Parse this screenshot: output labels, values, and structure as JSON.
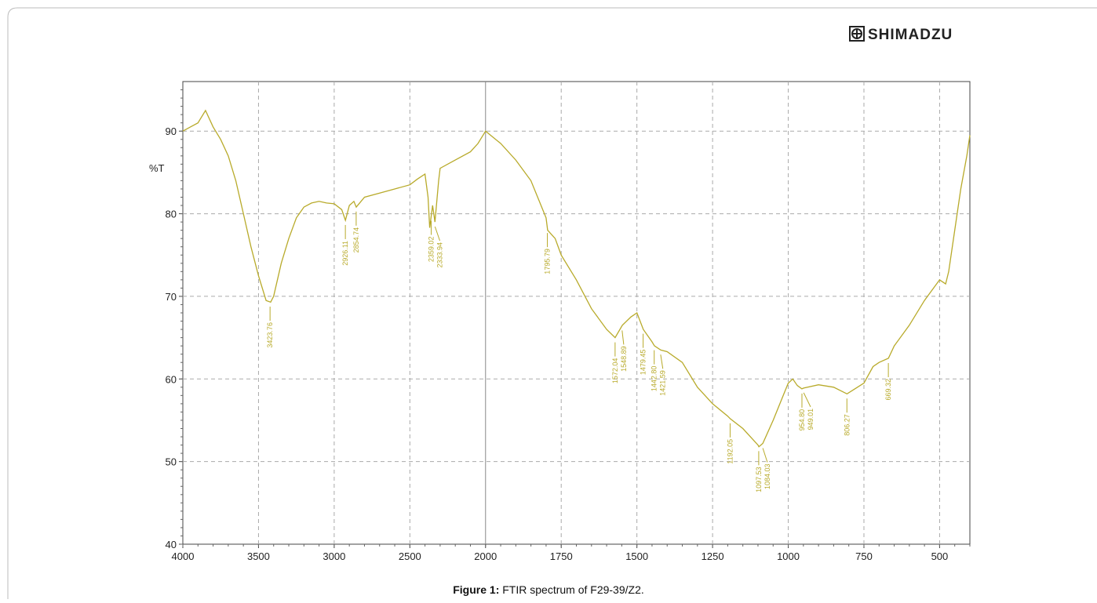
{
  "logo": "SHIMADZU",
  "caption": {
    "bold": "Figure 1:",
    "text": "FTIR spectrum of F29-39/Z2."
  },
  "chart_data": {
    "type": "line",
    "ylabel": "%T",
    "xlim": [
      4000,
      400
    ],
    "x_break": 2000,
    "xticks": [
      4000,
      3500,
      3000,
      2500,
      2000,
      1750,
      1500,
      1250,
      1000,
      750,
      500
    ],
    "ylim": [
      40,
      96
    ],
    "yticks": [
      40,
      50,
      60,
      70,
      80,
      90
    ],
    "grid": true,
    "series": [
      {
        "name": "F29-39/Z2",
        "color": "#b8aa2a",
        "x": [
          4000,
          3950,
          3900,
          3850,
          3800,
          3750,
          3700,
          3650,
          3600,
          3550,
          3500,
          3450,
          3420,
          3400,
          3350,
          3300,
          3250,
          3200,
          3150,
          3100,
          3050,
          3000,
          2950,
          2926,
          2900,
          2870,
          2854,
          2800,
          2700,
          2600,
          2500,
          2450,
          2400,
          2380,
          2369,
          2350,
          2334,
          2310,
          2300,
          2200,
          2100,
          2050,
          2000,
          1950,
          1900,
          1850,
          1800,
          1795,
          1770,
          1750,
          1700,
          1650,
          1600,
          1572,
          1548,
          1520,
          1500,
          1479,
          1450,
          1442,
          1421,
          1400,
          1350,
          1300,
          1250,
          1200,
          1192,
          1150,
          1100,
          1097,
          1084,
          1050,
          1000,
          985,
          970,
          955,
          949,
          900,
          850,
          806,
          780,
          750,
          720,
          700,
          669,
          650,
          600,
          550,
          520,
          500,
          480,
          470,
          450,
          430,
          410,
          400
        ],
        "values": [
          90,
          90.5,
          91,
          92.5,
          90.5,
          89,
          87,
          84,
          80,
          76,
          72.5,
          69.5,
          69.3,
          70,
          74,
          77,
          79.5,
          80.8,
          81.3,
          81.5,
          81.3,
          81.2,
          80.5,
          79.2,
          81,
          81.5,
          80.8,
          82,
          82.5,
          83,
          83.5,
          84.2,
          84.8,
          82,
          78.3,
          81,
          79,
          84,
          85.5,
          86.5,
          87.5,
          88.5,
          90,
          88.5,
          86.5,
          84,
          79.5,
          78,
          77,
          75,
          72,
          68.5,
          66,
          65,
          66.5,
          67.5,
          68,
          66,
          64.5,
          64,
          63.5,
          63.3,
          62,
          59,
          57,
          55.5,
          55.2,
          54,
          52,
          51.8,
          52.2,
          55,
          59.5,
          60,
          59.2,
          58.8,
          58.9,
          59.3,
          59,
          58.2,
          58.8,
          59.5,
          61.5,
          62,
          62.5,
          64,
          66.5,
          69.5,
          71,
          72,
          71.5,
          73,
          78,
          83,
          87,
          89.5
        ]
      }
    ],
    "peaks": [
      {
        "value": 3423.76,
        "label": "3423.76"
      },
      {
        "value": 2926.11,
        "label": "2926.11"
      },
      {
        "value": 2854.74,
        "label": "2854.74"
      },
      {
        "value": 2359.02,
        "label": "2359.02"
      },
      {
        "value": 2333.94,
        "label": "2333.94"
      },
      {
        "value": 1795.79,
        "label": "1795.79"
      },
      {
        "value": 1572.04,
        "label": "1572.04"
      },
      {
        "value": 1548.89,
        "label": "1548.89"
      },
      {
        "value": 1479.45,
        "label": "1479.45"
      },
      {
        "value": 1442.8,
        "label": "1442.80"
      },
      {
        "value": 1421.59,
        "label": "1421.59"
      },
      {
        "value": 1192.05,
        "label": "1192.05"
      },
      {
        "value": 1097.53,
        "label": "1097.53"
      },
      {
        "value": 1084.03,
        "label": "1084.03"
      },
      {
        "value": 954.8,
        "label": "954.80"
      },
      {
        "value": 949.01,
        "label": "949.01"
      },
      {
        "value": 806.27,
        "label": "806.27"
      },
      {
        "value": 669.32,
        "label": "669.32"
      }
    ]
  }
}
